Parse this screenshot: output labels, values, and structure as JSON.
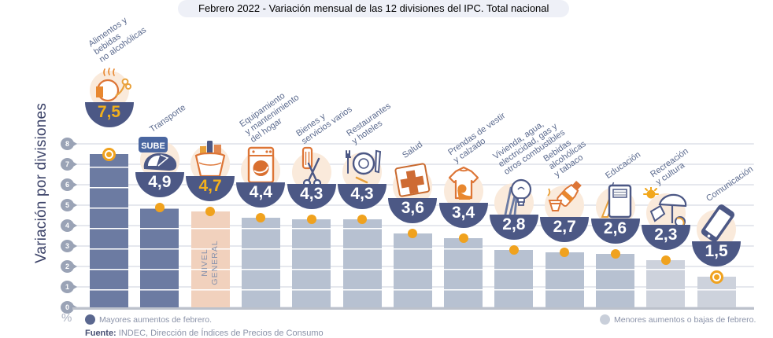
{
  "header": {
    "prefix": "Febrero 2022 - ",
    "main": "Variación mensual de las 12 divisiones del IPC.",
    "suffix": " Total nacional"
  },
  "y_axis": {
    "title": "Variación por divisiones",
    "unit_label": "%",
    "ticks": [
      8,
      7,
      6,
      5,
      4,
      3,
      2,
      1,
      0
    ]
  },
  "legend": {
    "left": {
      "label": "Mayores aumentos de febrero.",
      "color": "#5a678f"
    },
    "right": {
      "label": "Menores aumentos o bajas de febrero.",
      "color": "#c9cfda"
    }
  },
  "source": {
    "prefix": "Fuente:",
    "text": " INDEC, Dirección de Índices de Precios de Consumo"
  },
  "colors": {
    "dark_bar": "#6c7ba2",
    "light_bar": "#b7c1d1",
    "lighter_bar": "#cdd2dc",
    "general_bar": "#f1d1bd",
    "bowl": "#4c5885",
    "accent_gold": "#f0a21e",
    "grid": "#e6e8ee",
    "tick_badge": "#9aa3b6",
    "label_text": "#5b6a8e",
    "axis_title": "#3b4268"
  },
  "chart_data": {
    "type": "bar",
    "title": "Febrero 2022 - Variación mensual de las 12 divisiones del IPC. Total nacional",
    "ylabel": "Variación por divisiones",
    "unit": "%",
    "ylim": [
      0,
      8
    ],
    "yticks": [
      0,
      1,
      2,
      3,
      4,
      5,
      6,
      7,
      8
    ],
    "grid": true,
    "legend_position": "bottom",
    "categories": [
      "Alimentos y bebidas no alcohólicas",
      "Transporte",
      "Nivel general",
      "Equipamiento y mantenimiento del hogar",
      "Bienes y servicios varios",
      "Restaurantes y hoteles",
      "Salud",
      "Prendas de vestir y calzado",
      "Vivienda, agua, electricidad, gas y otros combustibles",
      "Bebidas alcohólicas y tabaco",
      "Educación",
      "Recreación y cultura",
      "Comunicación"
    ],
    "values": [
      7.5,
      4.9,
      4.7,
      4.4,
      4.3,
      4.3,
      3.6,
      3.4,
      2.8,
      2.7,
      2.6,
      2.3,
      1.5
    ],
    "bars": [
      {
        "category": "Alimentos y bebidas no alcohólicas",
        "label_lines": [
          "Alimentos y",
          "bebidas",
          "no alcohólicas"
        ],
        "value": 7.5,
        "display": "7,5",
        "group": "mayores",
        "color_key": "dark",
        "icon": "roast-chicken-icon",
        "marker": "ring",
        "value_color": "gold",
        "lift": 21
      },
      {
        "category": "Transporte",
        "label_lines": [
          "Transporte"
        ],
        "value": 4.9,
        "display": "4,9",
        "group": "mayores",
        "color_key": "dark",
        "icon": "sube-card-icon",
        "icon_text": "SUBE",
        "marker": "dot",
        "value_color": "white",
        "lift": 0
      },
      {
        "category": "Nivel general",
        "label_lines": [],
        "inner_label_lines": [
          "NIVEL",
          "GENERAL"
        ],
        "value": 4.7,
        "display": "4,7",
        "group": "nivel-general",
        "color_key": "general",
        "icon": "shopping-basket-icon",
        "marker": "dot",
        "value_color": "gold",
        "lift": 0
      },
      {
        "category": "Equipamiento y mantenimiento del hogar",
        "label_lines": [
          "Equipamiento",
          "y mantenimiento",
          "del hogar"
        ],
        "value": 4.4,
        "display": "4,4",
        "group": "menores",
        "color_key": "light",
        "icon": "washing-machine-icon",
        "marker": "dot",
        "value_color": "white",
        "lift": 0
      },
      {
        "category": "Bienes y servicios varios",
        "label_lines": [
          "Bienes y",
          "servicios varios"
        ],
        "value": 4.3,
        "display": "4,3",
        "group": "menores",
        "color_key": "light",
        "icon": "comb-scissors-icon",
        "marker": "dot",
        "value_color": "white",
        "lift": 0
      },
      {
        "category": "Restaurantes y hoteles",
        "label_lines": [
          "Restaurantes",
          "y hoteles"
        ],
        "value": 4.3,
        "display": "4,3",
        "group": "menores",
        "color_key": "light",
        "icon": "restaurant-icon",
        "marker": "dot",
        "value_color": "white",
        "lift": 0
      },
      {
        "category": "Salud",
        "label_lines": [
          "Salud"
        ],
        "value": 3.6,
        "display": "3,6",
        "group": "menores",
        "color_key": "light",
        "icon": "health-cross-icon",
        "marker": "dot",
        "value_color": "white",
        "lift": 0
      },
      {
        "category": "Prendas de vestir y calzado",
        "label_lines": [
          "Prendas de vestir",
          "y calzado"
        ],
        "value": 3.4,
        "display": "3,4",
        "group": "menores",
        "color_key": "light",
        "icon": "tshirt-icon",
        "marker": "dot",
        "value_color": "white",
        "lift": 0
      },
      {
        "category": "Vivienda, agua, electricidad, gas y otros combustibles",
        "label_lines": [
          "Vivienda, agua,",
          "electricidad, gas y",
          "otros combustibles"
        ],
        "value": 2.8,
        "display": "2,8",
        "group": "menores",
        "color_key": "light",
        "icon": "light-bulb-icon",
        "marker": "dot",
        "value_color": "white",
        "lift": 0
      },
      {
        "category": "Bebidas alcohólicas y tabaco",
        "label_lines": [
          "Bebidas",
          "alcohólicas",
          "y tabaco"
        ],
        "value": 2.7,
        "display": "2,7",
        "group": "menores",
        "color_key": "light",
        "icon": "bottle-glass-icon",
        "marker": "dot",
        "value_color": "white",
        "lift": 0
      },
      {
        "category": "Educación",
        "label_lines": [
          "Educación"
        ],
        "value": 2.6,
        "display": "2,6",
        "group": "menores",
        "color_key": "light",
        "icon": "notebook-pencil-icon",
        "marker": "dot",
        "value_color": "white",
        "lift": 0
      },
      {
        "category": "Recreación y cultura",
        "label_lines": [
          "Recreación",
          "y cultura"
        ],
        "value": 2.3,
        "display": "2,3",
        "group": "menores",
        "color_key": "lighter",
        "icon": "beach-umbrella-icon",
        "marker": "dot",
        "value_color": "white",
        "lift": 0
      },
      {
        "category": "Comunicación",
        "label_lines": [
          "Comunicación"
        ],
        "value": 1.5,
        "display": "1,5",
        "group": "menores",
        "color_key": "lighter",
        "icon": "smartphone-icon",
        "marker": "ring",
        "value_color": "white",
        "lift": 0
      }
    ]
  }
}
